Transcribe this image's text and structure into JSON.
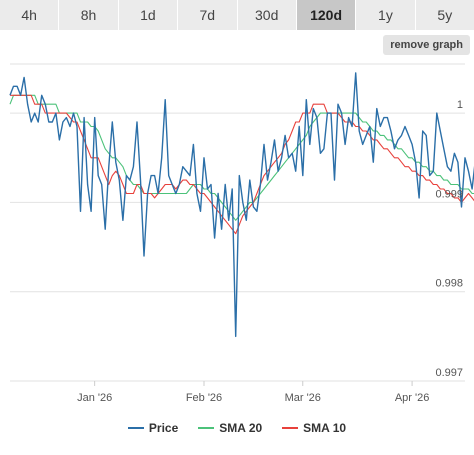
{
  "tabs": [
    {
      "label": "4h",
      "active": false
    },
    {
      "label": "8h",
      "active": false
    },
    {
      "label": "1d",
      "active": false
    },
    {
      "label": "7d",
      "active": false
    },
    {
      "label": "30d",
      "active": false
    },
    {
      "label": "120d",
      "active": true
    },
    {
      "label": "1y",
      "active": false
    },
    {
      "label": "5y",
      "active": false
    }
  ],
  "remove_graph_label": "remove graph",
  "legend": [
    {
      "label": "Price",
      "color": "#2b6fa8"
    },
    {
      "label": "SMA 20",
      "color": "#4cc27a"
    },
    {
      "label": "SMA 10",
      "color": "#e8413c"
    }
  ],
  "colors": {
    "price": "#2b6fa8",
    "sma20": "#4cc27a",
    "sma10": "#e8413c",
    "grid": "#e2e2e2"
  },
  "chart_data": {
    "type": "line",
    "ylim": [
      0.997,
      1.00055
    ],
    "y_ticks": [
      {
        "label": "1",
        "value": 1.0
      },
      {
        "label": "0.999",
        "value": 0.999
      },
      {
        "label": "0.998",
        "value": 0.998
      },
      {
        "label": "0.997",
        "value": 0.997
      }
    ],
    "x_range": [
      "2025-12-08",
      "2026-04-16"
    ],
    "x_ticks": [
      {
        "label": "Jan '26",
        "date": "2026-01-01"
      },
      {
        "label": "Feb '26",
        "date": "2026-02-01"
      },
      {
        "label": "Mar '26",
        "date": "2026-03-01"
      },
      {
        "label": "Apr '26",
        "date": "2026-04-01"
      }
    ],
    "grid": true,
    "legend_position": "bottom",
    "series": [
      {
        "name": "Price",
        "key": "price",
        "dates_start": "2025-12-08",
        "step_days": 1,
        "values": [
          1.0002,
          1.0003,
          1.0003,
          1.0002,
          1.0004,
          1.0001,
          0.9999,
          1.0,
          0.9999,
          1.0002,
          1.0001,
          0.9999,
          0.9999,
          1.0,
          0.9997,
          0.9999,
          0.99995,
          0.99985,
          1.0,
          0.99985,
          0.9989,
          0.99995,
          0.9992,
          0.9989,
          0.99995,
          0.9993,
          0.9992,
          0.9987,
          0.9994,
          0.9999,
          0.99945,
          0.99925,
          0.9988,
          0.9993,
          0.99925,
          0.9994,
          0.9999,
          0.99925,
          0.9984,
          0.9991,
          0.9993,
          0.9993,
          0.9991,
          0.9995,
          1.00015,
          0.9993,
          0.9992,
          0.9991,
          0.9992,
          0.9994,
          0.99935,
          0.9993,
          0.99965,
          0.9991,
          0.9989,
          0.9995,
          0.99915,
          0.9992,
          0.9986,
          0.9991,
          0.9987,
          0.9992,
          0.9988,
          0.99915,
          0.9975,
          0.9993,
          0.999,
          0.9988,
          0.99925,
          0.99895,
          0.9989,
          0.9992,
          0.99965,
          0.99925,
          0.99945,
          0.9997,
          0.99935,
          0.9995,
          0.99975,
          0.9995,
          0.99955,
          0.99935,
          0.99985,
          0.9993,
          1.00015,
          0.99965,
          1.00005,
          0.99995,
          0.99955,
          0.9996,
          1.0,
          1.0,
          0.99925,
          1.0001,
          1.0,
          0.99965,
          0.99995,
          0.99985,
          1.00045,
          0.9998,
          0.99965,
          0.99975,
          0.99985,
          0.99945,
          1.00005,
          0.99985,
          0.99995,
          0.99995,
          0.9998,
          0.9996,
          0.9997,
          0.99975,
          0.99985,
          0.99975,
          0.99965,
          0.99945,
          0.99905,
          0.9998,
          0.99975,
          0.9993,
          0.99935,
          1.0,
          0.9998,
          0.9996,
          0.9994,
          0.99935,
          0.99955,
          0.99945,
          0.99895,
          0.9995,
          0.99935,
          0.99915,
          0.9995,
          0.99945,
          0.9993,
          0.99905,
          0.99935,
          0.99945,
          0.99915,
          0.99935,
          0.99955,
          0.9998,
          0.9988,
          1.0
        ]
      },
      {
        "name": "SMA 20",
        "key": "sma20",
        "dates_start": "2025-12-08",
        "step_days": 1,
        "values": [
          1.0001,
          1.0002,
          1.0002,
          1.0002,
          1.0002,
          1.0002,
          1.0002,
          1.0002,
          1.0001,
          1.0001,
          1.0001,
          1.0001,
          1.0001,
          1.0001,
          1.0,
          1.0,
          1.0,
          1.0,
          1.0,
          1.0,
          0.9999,
          0.9999,
          0.9999,
          0.99985,
          0.99985,
          0.9998,
          0.9997,
          0.9996,
          0.99955,
          0.9995,
          0.9995,
          0.99945,
          0.9994,
          0.9993,
          0.99925,
          0.9992,
          0.9992,
          0.99915,
          0.9991,
          0.9991,
          0.9991,
          0.9991,
          0.9991,
          0.9991,
          0.9991,
          0.9991,
          0.9991,
          0.9991,
          0.9991,
          0.9991,
          0.9991,
          0.99915,
          0.9992,
          0.9992,
          0.9992,
          0.99915,
          0.99915,
          0.9991,
          0.9991,
          0.99905,
          0.999,
          0.99895,
          0.9989,
          0.99885,
          0.9988,
          0.99885,
          0.9989,
          0.99895,
          0.999,
          0.999,
          0.99905,
          0.9991,
          0.99915,
          0.9992,
          0.99925,
          0.9993,
          0.99935,
          0.9994,
          0.99945,
          0.9995,
          0.99955,
          0.9996,
          0.99965,
          0.9997,
          0.99975,
          0.99985,
          0.9999,
          0.99995,
          1.0,
          1.0,
          1.0,
          1.0,
          1.0,
          1.0,
          1.0,
          1.0,
          1.0,
          1.0,
          1.0,
          0.99995,
          0.9999,
          0.9999,
          0.99985,
          0.9998,
          0.9998,
          0.99975,
          0.99975,
          0.9997,
          0.9997,
          0.99965,
          0.9996,
          0.9996,
          0.99955,
          0.9995,
          0.9995,
          0.99945,
          0.99945,
          0.9994,
          0.9994,
          0.99935,
          0.99935,
          0.9993,
          0.9993,
          0.99925,
          0.99925,
          0.9992,
          0.9992,
          0.9992,
          0.99915,
          0.99915,
          0.99915,
          0.9991,
          0.9991,
          0.9991,
          0.99905,
          0.99905,
          0.99905,
          0.999,
          0.999,
          0.99895,
          0.99895,
          0.9989,
          0.9989,
          0.99885
        ]
      },
      {
        "name": "SMA 10",
        "key": "sma10",
        "dates_start": "2025-12-08",
        "step_days": 1,
        "values": [
          1.0002,
          1.0002,
          1.0002,
          1.0002,
          1.0002,
          1.0002,
          1.0002,
          1.0001,
          1.0001,
          1.0001,
          1.0,
          1.0,
          1.0,
          1.0,
          1.0,
          1.0,
          1.0,
          0.99995,
          0.9999,
          0.9999,
          0.9998,
          0.9997,
          0.9996,
          0.9995,
          0.9995,
          0.9995,
          0.9994,
          0.9993,
          0.9992,
          0.9993,
          0.99935,
          0.9993,
          0.9992,
          0.9991,
          0.9991,
          0.9991,
          0.9992,
          0.9992,
          0.9991,
          0.9991,
          0.9991,
          0.99905,
          0.9991,
          0.99915,
          0.9992,
          0.9992,
          0.9992,
          0.99915,
          0.9992,
          0.99925,
          0.99925,
          0.9992,
          0.9992,
          0.99915,
          0.9991,
          0.9991,
          0.99905,
          0.999,
          0.99895,
          0.9989,
          0.99885,
          0.9988,
          0.99875,
          0.9987,
          0.99865,
          0.99875,
          0.99885,
          0.9989,
          0.99895,
          0.999,
          0.9991,
          0.9992,
          0.9993,
          0.99935,
          0.9994,
          0.99945,
          0.9995,
          0.99955,
          0.99965,
          0.9997,
          0.9998,
          0.9999,
          0.9999,
          1.0,
          1.0,
          1.0,
          1.0001,
          1.0001,
          1.0001,
          1.0001,
          1.0,
          1.0,
          1.0,
          1.0,
          0.99995,
          0.9999,
          0.9999,
          0.9999,
          0.99985,
          0.99985,
          0.9998,
          0.9998,
          0.99975,
          0.9997,
          0.9997,
          0.99965,
          0.9996,
          0.9996,
          0.99955,
          0.9995,
          0.9995,
          0.99945,
          0.9994,
          0.9994,
          0.99935,
          0.99935,
          0.9993,
          0.9993,
          0.99925,
          0.99925,
          0.9992,
          0.9992,
          0.99915,
          0.99915,
          0.9991,
          0.9991,
          0.99905,
          0.99905,
          0.999,
          0.99905,
          0.9991,
          0.99905,
          0.999,
          0.99895,
          0.999,
          0.99905,
          0.999,
          0.99895,
          0.999,
          0.999,
          0.99905,
          0.99895
        ]
      }
    ]
  }
}
